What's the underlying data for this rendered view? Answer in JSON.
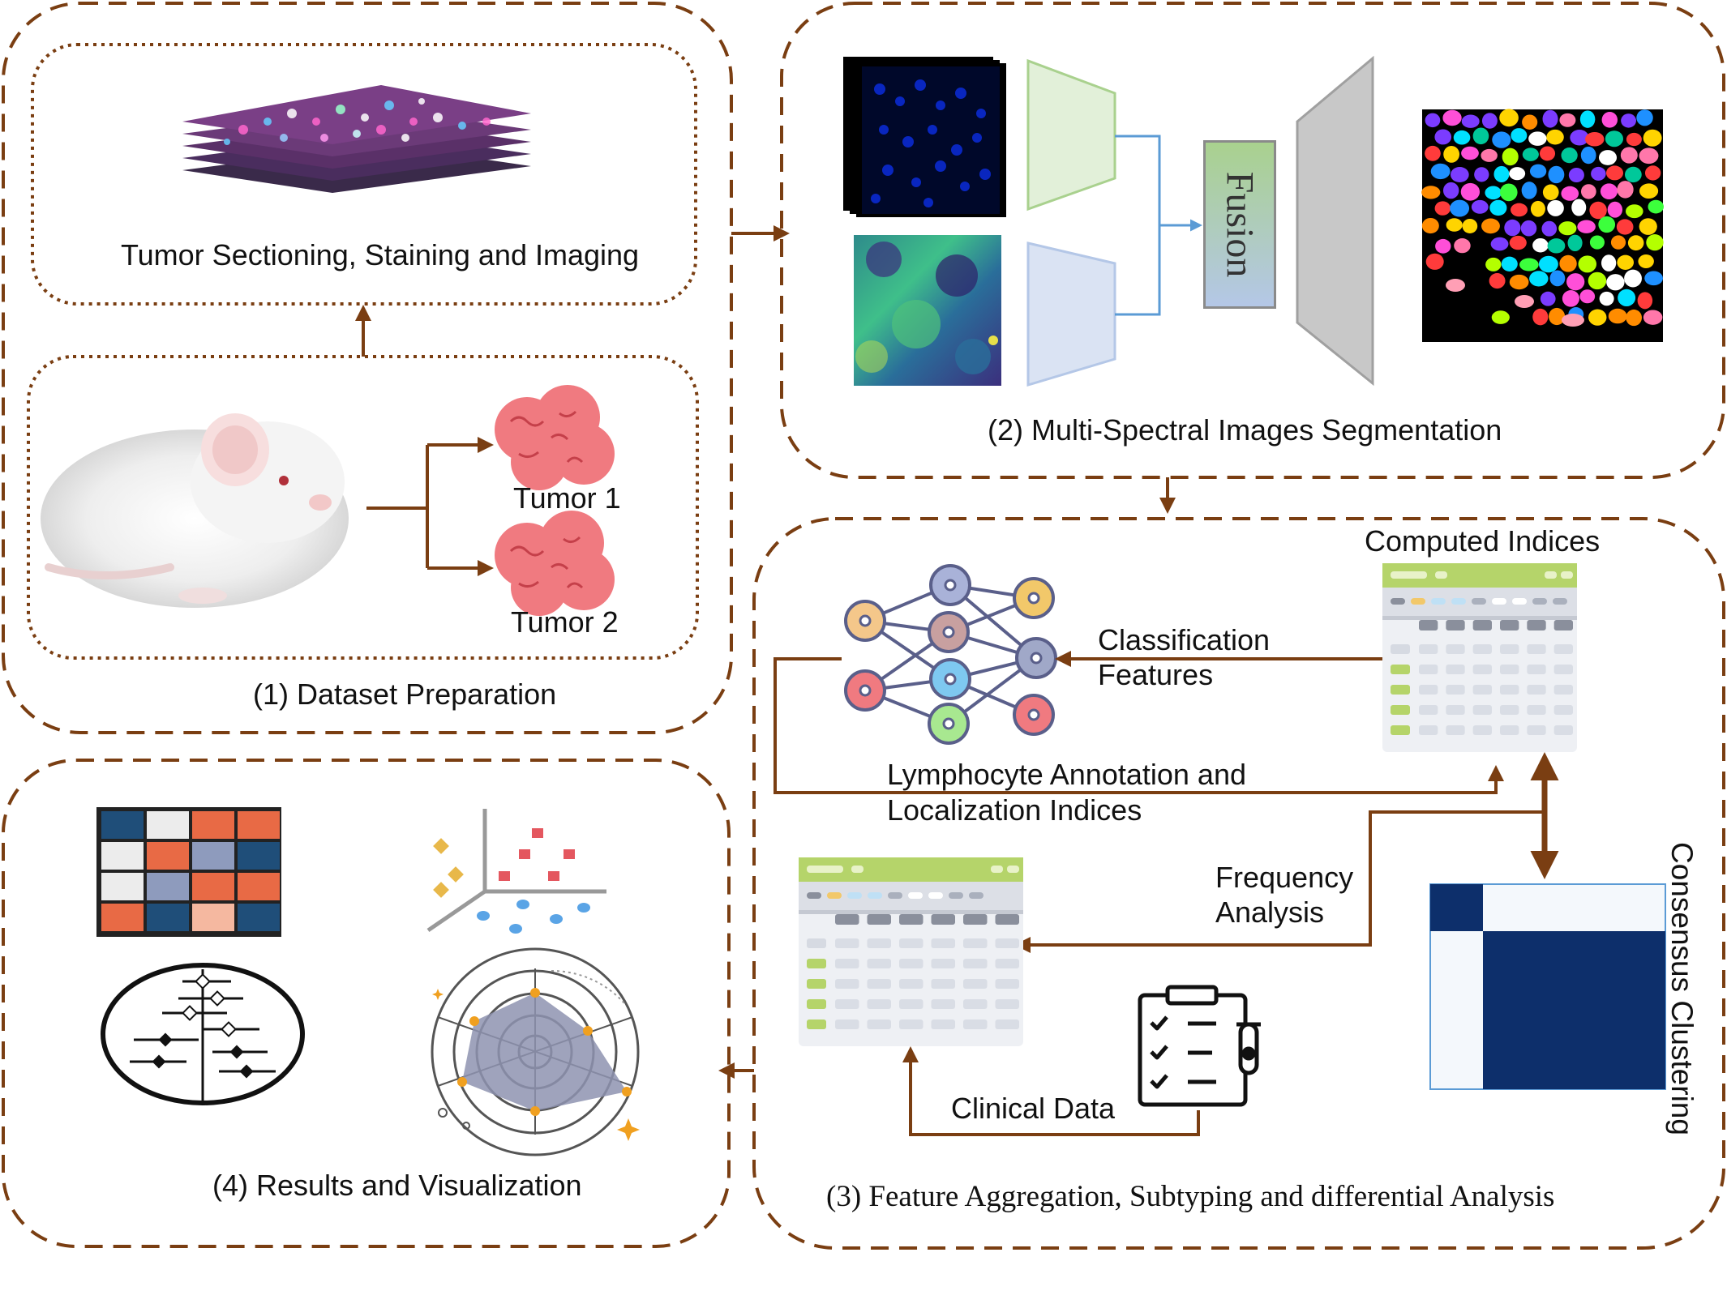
{
  "panels": {
    "dataset": "(1) Dataset Preparation",
    "segmentation": "(2) Multi-Spectral Images Segmentation",
    "aggregation": "(3) Feature Aggregation, Subtyping and differential Analysis",
    "results": "(4) Results and Visualization"
  },
  "labels": {
    "sectioning": "Tumor Sectioning, Staining and Imaging",
    "tumor1": "Tumor 1",
    "tumor2": "Tumor 2",
    "fusion": "Fusion",
    "computed_indices": "Computed Indices",
    "classification_l1": "Classification",
    "classification_l2": "Features",
    "lymphocyte_l1": "Lymphocyte Annotation and",
    "lymphocyte_l2": "Localization Indices",
    "frequency_l1": "Frequency",
    "frequency_l2": "Analysis",
    "clinical": "Clinical Data",
    "consensus": "Consensus Clustering"
  },
  "colors": {
    "flow": "#7a3e12",
    "fusion_arrow": "#5b9bd5",
    "matrix_navy": "#0d2f6b",
    "table_green": "#b5d46a"
  }
}
